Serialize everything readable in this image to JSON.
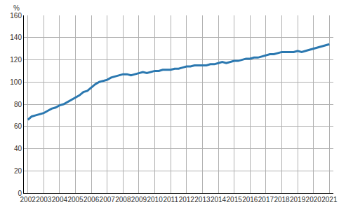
{
  "chart_data": {
    "type": "line",
    "y_label": "%",
    "categories": [
      "2002",
      null,
      null,
      null,
      "2003",
      null,
      null,
      null,
      "2004",
      null,
      null,
      null,
      "2005",
      null,
      null,
      null,
      "2006",
      null,
      null,
      null,
      "2007",
      null,
      null,
      null,
      "2008",
      null,
      null,
      null,
      "2009",
      null,
      null,
      null,
      "2010",
      null,
      null,
      null,
      "2011",
      null,
      null,
      null,
      "2012",
      null,
      null,
      null,
      "2013",
      null,
      null,
      null,
      "2014",
      null,
      null,
      null,
      "2015",
      null,
      null,
      null,
      "2016",
      null,
      null,
      null,
      "2017",
      null,
      null,
      null,
      "2018",
      null,
      null,
      null,
      "2019",
      null,
      null,
      null,
      "2020",
      null,
      null,
      null,
      "2021"
    ],
    "values": [
      66,
      69,
      70,
      71,
      72,
      74,
      76,
      77,
      79,
      80,
      82,
      84,
      86,
      88,
      91,
      92,
      95,
      98,
      100,
      101,
      102,
      104,
      105,
      106,
      107,
      107,
      106,
      107,
      108,
      109,
      108,
      109,
      110,
      110,
      111,
      111,
      111,
      112,
      112,
      113,
      114,
      114,
      115,
      115,
      115,
      115,
      116,
      116,
      117,
      118,
      117,
      118,
      119,
      119,
      120,
      121,
      121,
      122,
      122,
      123,
      124,
      125,
      125,
      126,
      127,
      127,
      127,
      127,
      128,
      127,
      128,
      129,
      130,
      131,
      132,
      133,
      134
    ],
    "color": "#2b78b0",
    "ylim": [
      0,
      160
    ],
    "yticks": [
      0,
      20,
      40,
      60,
      80,
      100,
      120,
      140,
      160
    ],
    "grid": true
  }
}
